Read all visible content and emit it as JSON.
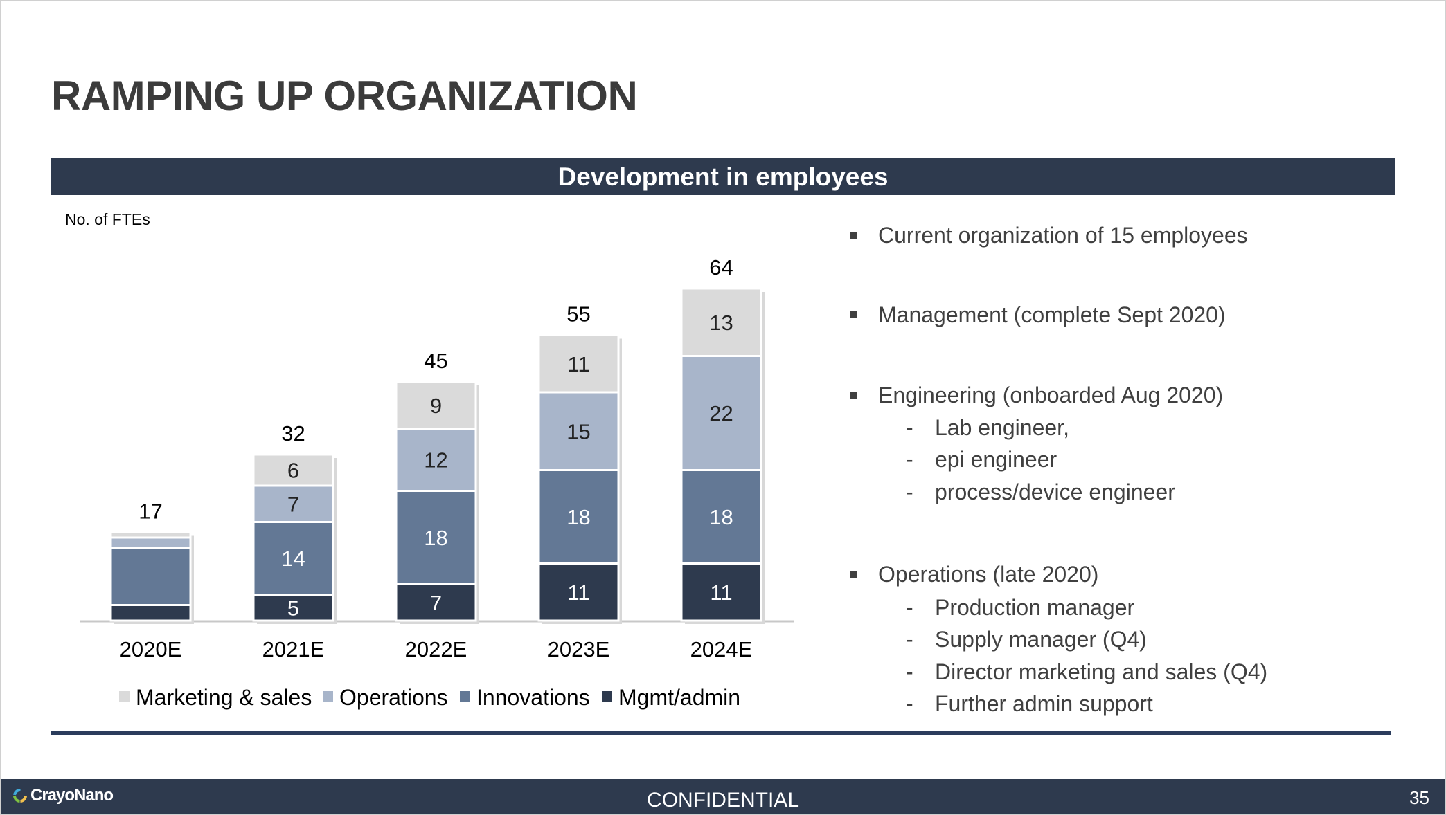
{
  "slide": {
    "title": "RAMPING UP ORGANIZATION",
    "section_header": "Development in employees",
    "unit_label": "No. of FTEs"
  },
  "chart_data": {
    "type": "bar",
    "stacked": true,
    "categories": [
      "2020E",
      "2021E",
      "2022E",
      "2023E",
      "2024E"
    ],
    "totals": [
      17,
      32,
      45,
      55,
      64
    ],
    "series": [
      {
        "name": "Mgmt/admin",
        "color": "#2e3a4e",
        "values": [
          3,
          5,
          7,
          11,
          11
        ],
        "labels": [
          "",
          "5",
          "7",
          "11",
          "11"
        ]
      },
      {
        "name": "Innovations",
        "color": "#637895",
        "values": [
          11,
          14,
          18,
          18,
          18
        ],
        "labels": [
          "",
          "14",
          "18",
          "18",
          "18"
        ]
      },
      {
        "name": "Operations",
        "color": "#a8b5ca",
        "values": [
          2,
          7,
          12,
          15,
          22
        ],
        "labels": [
          "",
          "7",
          "12",
          "15",
          "22"
        ]
      },
      {
        "name": "Marketing & sales",
        "color": "#dadada",
        "values": [
          1,
          6,
          9,
          11,
          13
        ],
        "labels": [
          "",
          "6",
          "9",
          "11",
          "13"
        ]
      }
    ],
    "legend_order": [
      "Marketing & sales",
      "Operations",
      "Innovations",
      "Mgmt/admin"
    ],
    "legend_position": "bottom"
  },
  "bullets": [
    {
      "text": "Current organization of 15 employees",
      "subitems": []
    },
    {
      "text": "Management (complete Sept 2020)",
      "subitems": []
    },
    {
      "text": "Engineering (onboarded Aug 2020)",
      "subitems": [
        "Lab engineer,",
        "epi engineer",
        "process/device engineer"
      ]
    },
    {
      "text": "Operations (late 2020)",
      "subitems": [
        "Production manager",
        "Supply manager (Q4)",
        "Director marketing and sales (Q4)",
        "Further admin support"
      ]
    }
  ],
  "footer": {
    "logo_text": "CrayoNano",
    "confidential": "CONFIDENTIAL",
    "page_number": "35"
  }
}
